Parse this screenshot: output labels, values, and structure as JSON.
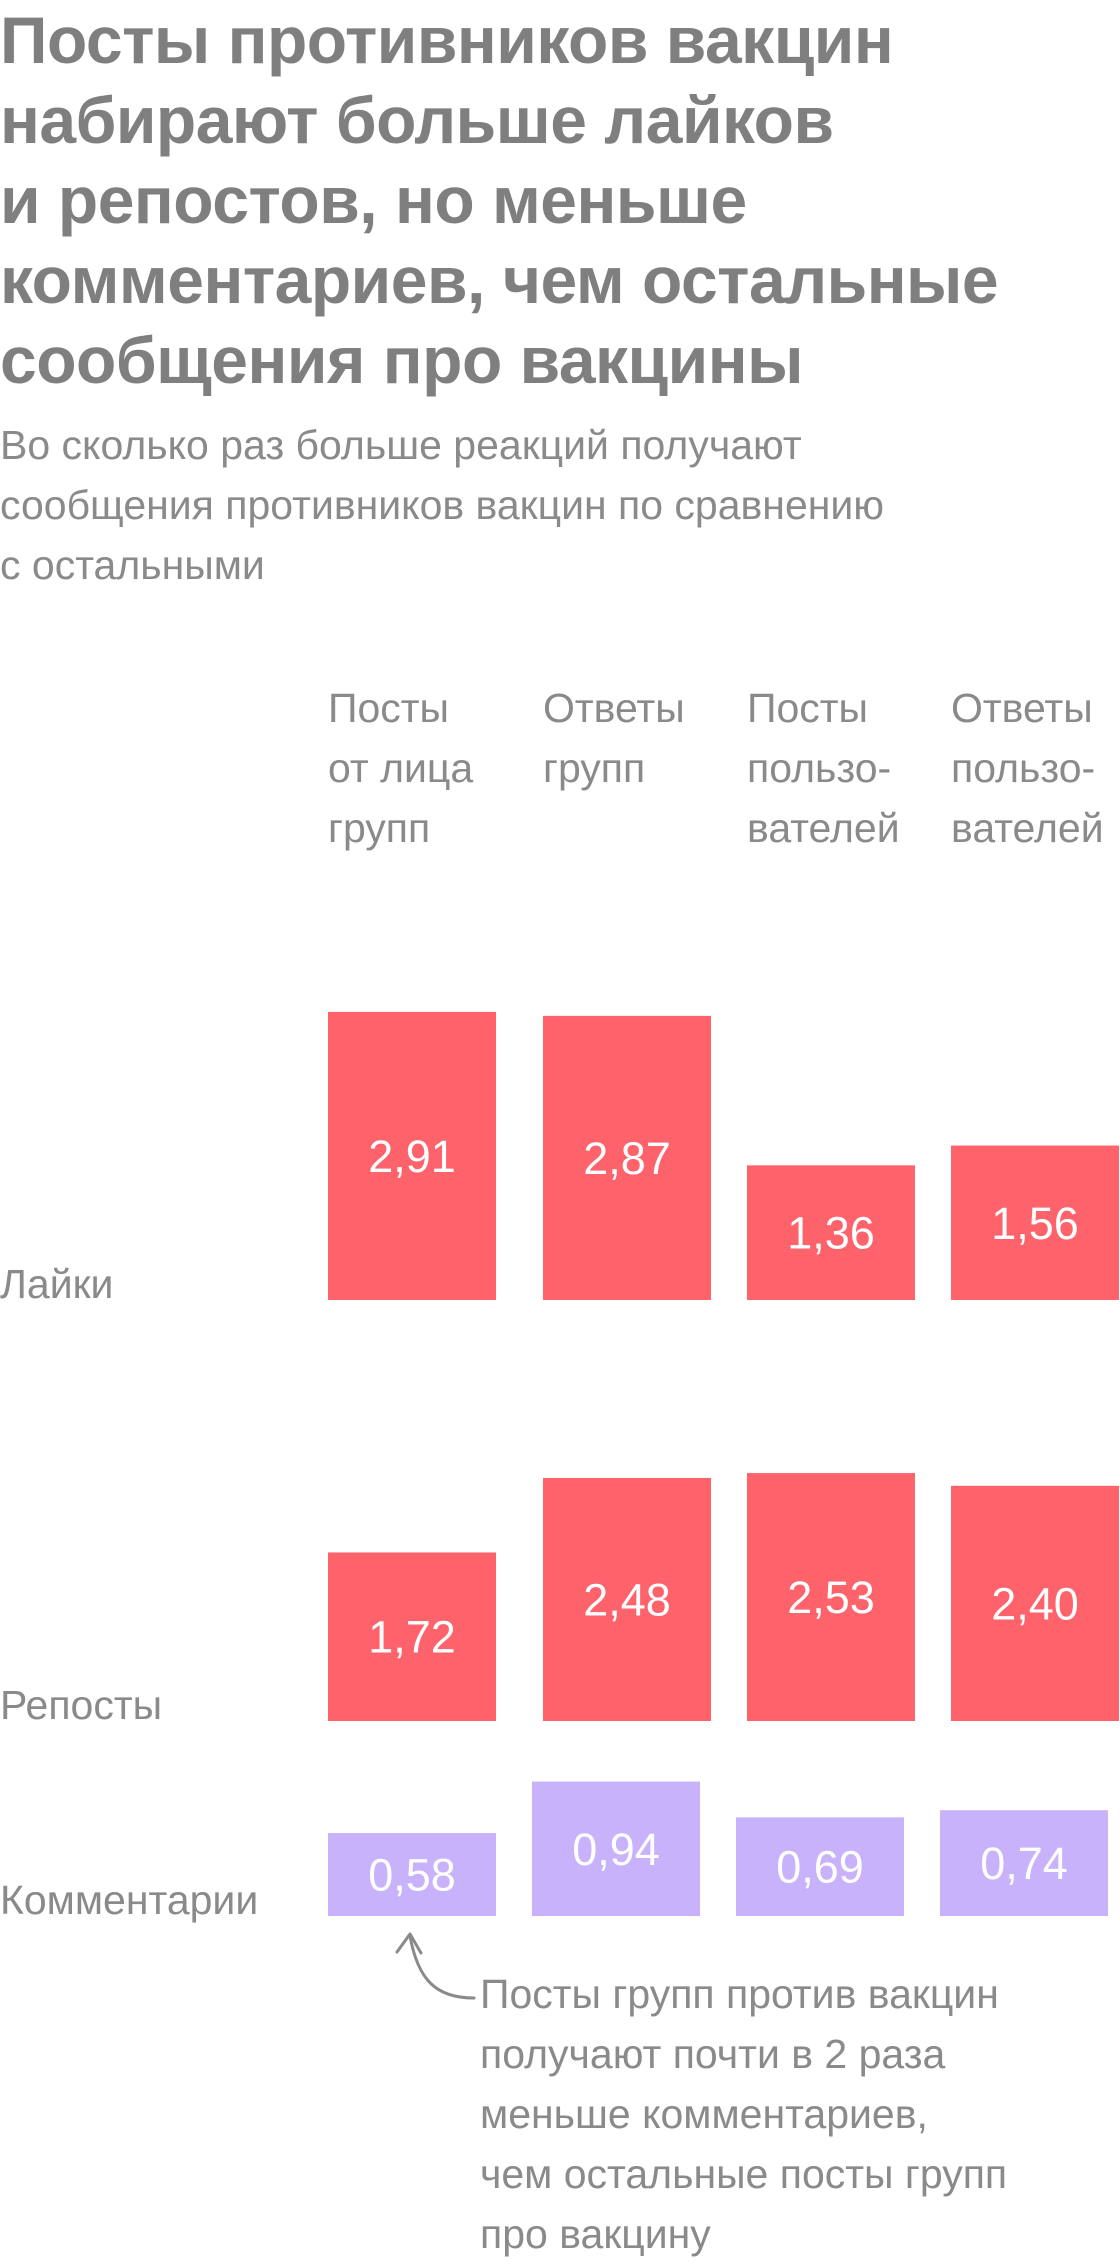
{
  "title": "Посты противников вакцин\nнабирают больше лайков\nи репостов, но меньше\nкомментариев, чем остальные\nсообщения про вакцины",
  "subtitle": "Во сколько раз больше реакций получают\nсообщения противников вакцин по сравнению\nс остальными",
  "colors": {
    "likes_reposts": "#fe626b",
    "comments": "#c9b2fc"
  },
  "chart_data": {
    "type": "bar",
    "categories": [
      [
        "Посты",
        "от лица",
        "групп"
      ],
      [
        "Ответы",
        "групп"
      ],
      [
        "Посты",
        "пользо-",
        "вателей"
      ],
      [
        "Ответы",
        "пользо-",
        "вателей"
      ]
    ],
    "series": [
      {
        "name": "Лайки",
        "values": [
          2.91,
          2.87,
          1.36,
          1.56
        ],
        "labels": [
          "2,91",
          "2,87",
          "1,36",
          "1,56"
        ]
      },
      {
        "name": "Репосты",
        "values": [
          1.72,
          2.48,
          2.53,
          2.4
        ],
        "labels": [
          "1,72",
          "2,48",
          "2,53",
          "2,40"
        ]
      },
      {
        "name": "Комментарии",
        "values": [
          0.58,
          0.94,
          0.69,
          0.74
        ],
        "labels": [
          "0,58",
          "0,94",
          "0,69",
          "0,74"
        ]
      }
    ],
    "annotation": [
      "Посты групп против вакцин",
      "получают почти в 2 раза",
      "меньше комментариев,",
      "чем остальные посты групп",
      "про вакцину"
    ]
  }
}
